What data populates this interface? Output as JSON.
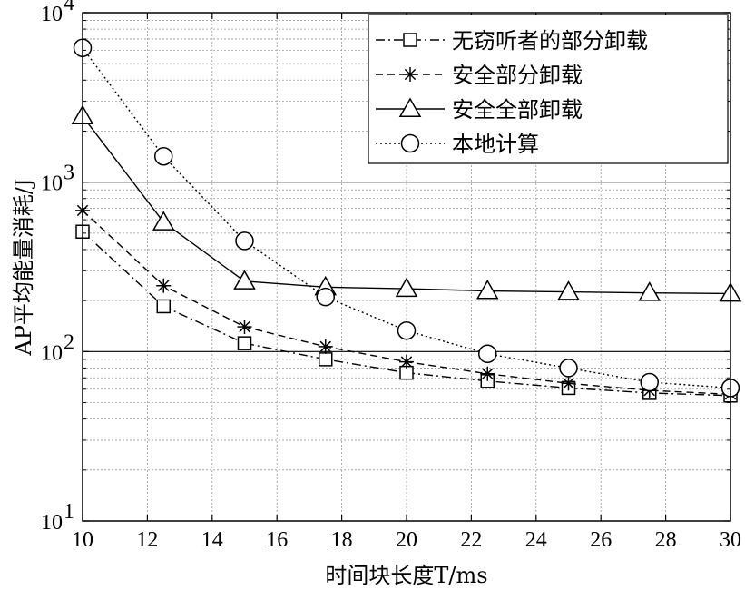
{
  "chart_data": {
    "type": "line",
    "xlabel": "时间块长度T/ms",
    "ylabel": "AP平均能量消耗/J",
    "x": [
      10,
      12.5,
      15,
      17.5,
      20,
      22.5,
      25,
      27.5,
      30
    ],
    "xlim": [
      10,
      30
    ],
    "ylim": [
      10,
      10000
    ],
    "yscale": "log",
    "xticks": [
      "10",
      "12",
      "14",
      "16",
      "18",
      "20",
      "22",
      "24",
      "26",
      "28",
      "30"
    ],
    "yticks": [
      {
        "base": "10",
        "exp": "1"
      },
      {
        "base": "10",
        "exp": "2"
      },
      {
        "base": "10",
        "exp": "3"
      },
      {
        "base": "10",
        "exp": "4"
      }
    ],
    "grid": true,
    "legend_position": "top-right",
    "series": [
      {
        "name": "无窃听者的部分卸载",
        "marker": "square",
        "line": "dashdot",
        "values": [
          510,
          185,
          112,
          90,
          75,
          67,
          61,
          57,
          55
        ]
      },
      {
        "name": "安全部分卸载",
        "marker": "star",
        "line": "dashed",
        "values": [
          680,
          245,
          140,
          107,
          87,
          74,
          65,
          59,
          56
        ]
      },
      {
        "name": "安全全部卸载",
        "marker": "triangle",
        "line": "solid",
        "values": [
          2450,
          580,
          260,
          240,
          235,
          228,
          225,
          222,
          220
        ]
      },
      {
        "name": "本地计算",
        "marker": "circle",
        "line": "dotted",
        "values": [
          6200,
          1420,
          450,
          210,
          133,
          97,
          80,
          66,
          61
        ]
      }
    ]
  }
}
